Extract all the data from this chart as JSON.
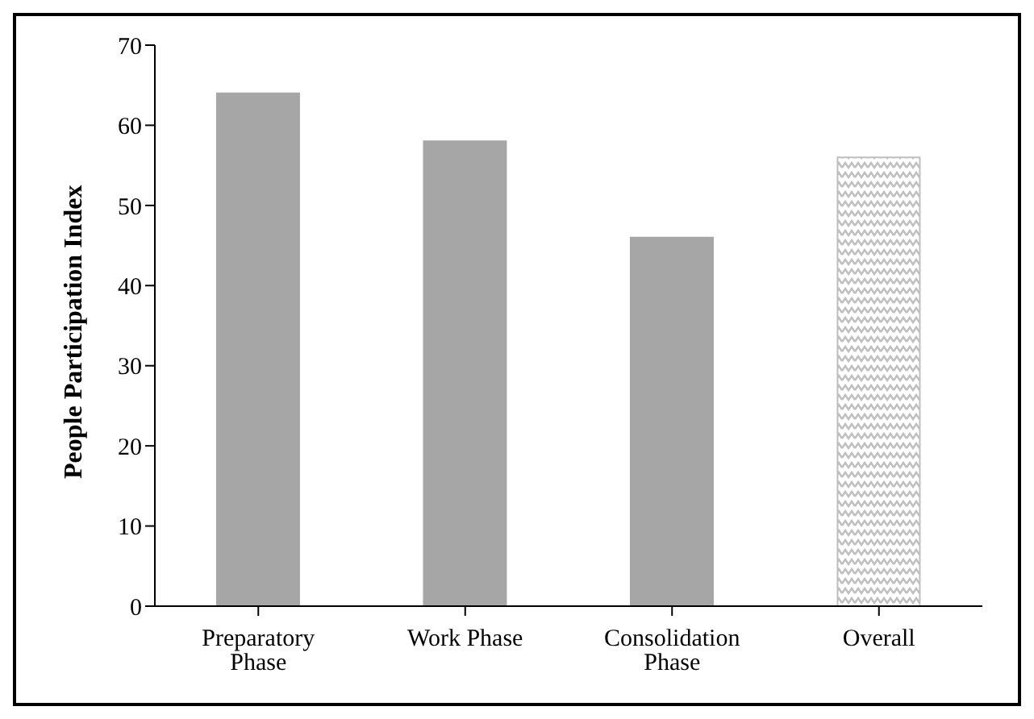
{
  "chart_data": {
    "type": "bar",
    "ylabel": "People Participation Index",
    "categories": [
      "Preparatory Phase",
      "Work Phase",
      "Consolidation Phase",
      "Overall"
    ],
    "values": [
      64,
      58,
      46,
      56
    ],
    "colors": [
      "#a6a6a6",
      "#a6a6a6",
      "#a6a6a6",
      "#bfbfbf"
    ],
    "ylim": [
      0,
      70
    ],
    "yticks": [
      0,
      10,
      20,
      30,
      40,
      50,
      60,
      70
    ],
    "grid": false,
    "legend": false
  }
}
